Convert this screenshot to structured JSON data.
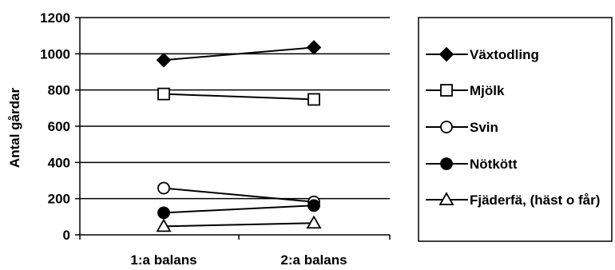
{
  "chart_data": {
    "type": "line",
    "title": "",
    "xlabel": "",
    "ylabel": "Antal gårdar",
    "categories": [
      "1:a balans",
      "2:a balans"
    ],
    "ylim": [
      0,
      1200
    ],
    "yticks": [
      0,
      200,
      400,
      600,
      800,
      1000,
      1200
    ],
    "grid": "horizontal",
    "legend_position": "right",
    "series": [
      {
        "name": "Växtodling",
        "values": [
          965,
          1035
        ],
        "marker": "filled-diamond",
        "color": "#000000"
      },
      {
        "name": "Mjölk",
        "values": [
          778,
          748
        ],
        "marker": "open-square",
        "color": "#000000"
      },
      {
        "name": "Svin",
        "values": [
          258,
          182
        ],
        "marker": "open-circle",
        "color": "#000000"
      },
      {
        "name": "Nötkött",
        "values": [
          122,
          162
        ],
        "marker": "filled-circle",
        "color": "#000000"
      },
      {
        "name": "Fjäderfä, (häst o får)",
        "values": [
          47,
          65
        ],
        "marker": "open-triangle",
        "color": "#000000"
      }
    ]
  }
}
